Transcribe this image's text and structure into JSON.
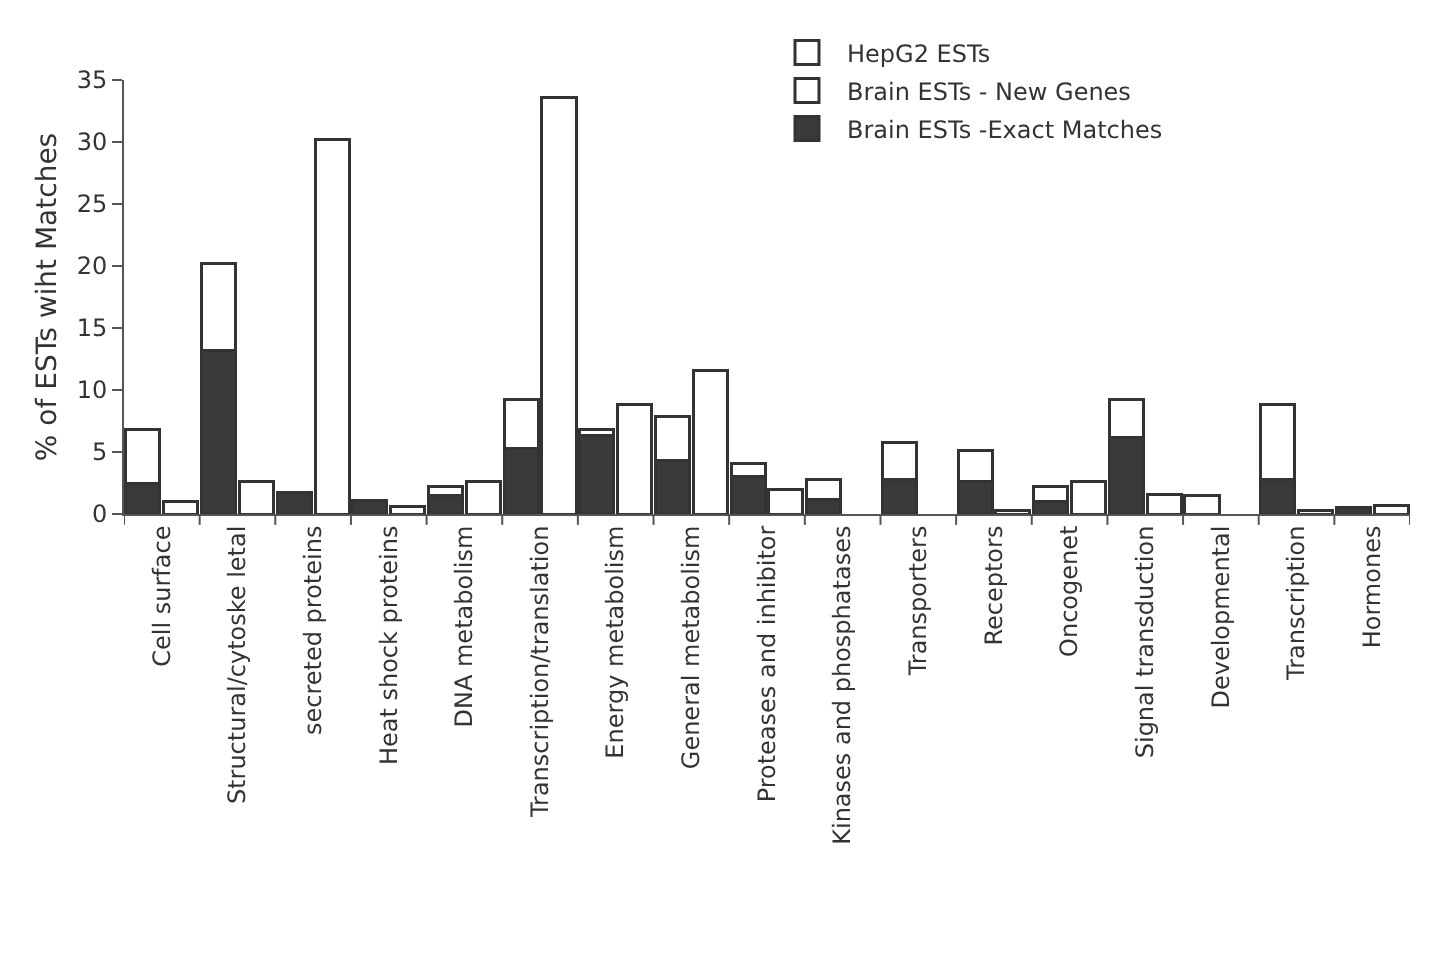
{
  "chart_data": {
    "type": "bar",
    "ylabel": "% of ESTs wiht Matches",
    "categories": [
      "Cell surface",
      null,
      "Structural/cytoske letal",
      null,
      "secreted proteins",
      null,
      "Heat shock proteins",
      null,
      "DNA metabolism",
      null,
      "Transcription/translation",
      null,
      "Energy metabolism",
      null,
      "General metabolism",
      null,
      "Proteases and inhibitor",
      null,
      "Kinases and phosphatases",
      null,
      "Transporters",
      null,
      "Receptors",
      null,
      "Oncogenet",
      null,
      "Signal transduction",
      null,
      "Developmental",
      null,
      "Transcription",
      null,
      "Hormones",
      null
    ],
    "series": [
      {
        "name": "Brain ESTs -Exact Matches",
        "color": "#3a3a3a",
        "values": [
          2.5,
          null,
          13.2,
          null,
          1.7,
          null,
          1.1,
          null,
          1.5,
          null,
          5.3,
          null,
          6.3,
          null,
          4.3,
          null,
          3.0,
          null,
          1.2,
          null,
          2.8,
          null,
          2.6,
          null,
          1.0,
          null,
          6.2,
          null,
          null,
          null,
          2.8,
          null,
          0.5,
          null
        ]
      },
      {
        "name": "Brain ESTs - New Genes",
        "color": "#ffffff",
        "values": [
          4.3,
          null,
          7.0,
          null,
          null,
          null,
          null,
          null,
          0.7,
          null,
          3.9,
          null,
          0.5,
          null,
          3.6,
          null,
          1.1,
          null,
          1.6,
          null,
          3.0,
          null,
          2.5,
          null,
          1.2,
          null,
          3.0,
          null,
          1.5,
          null,
          6.0,
          null,
          null,
          null
        ]
      },
      {
        "name": "HepG2 ESTs",
        "color": "#ffffff",
        "values": [
          null,
          1.0,
          null,
          2.6,
          null,
          30.2,
          null,
          0.6,
          null,
          2.6,
          null,
          33.6,
          null,
          8.8,
          null,
          11.6,
          null,
          2.0,
          null,
          null,
          null,
          null,
          null,
          0.3,
          null,
          2.6,
          null,
          1.6,
          null,
          null,
          null,
          0.3,
          null,
          0.7
        ]
      }
    ],
    "stacked": true,
    "ylim": [
      0,
      35
    ],
    "yticks": [
      0,
      5,
      10,
      15,
      20,
      25,
      30,
      35
    ],
    "legend": "top right"
  }
}
